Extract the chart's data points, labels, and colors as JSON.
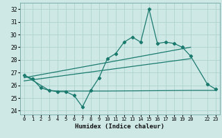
{
  "bg_color": "#cde8e5",
  "grid_color": "#aacfcc",
  "line_color": "#1a7a6e",
  "xlabel": "Humidex (Indice chaleur)",
  "xlim": [
    -0.5,
    23.5
  ],
  "ylim": [
    23.7,
    32.5
  ],
  "yticks": [
    24,
    25,
    26,
    27,
    28,
    29,
    30,
    31,
    32
  ],
  "xticks": [
    0,
    1,
    2,
    3,
    4,
    5,
    6,
    7,
    8,
    9,
    10,
    11,
    12,
    13,
    14,
    15,
    16,
    17,
    18,
    19,
    20,
    22,
    23
  ],
  "xtick_labels": [
    "0",
    "1",
    "2",
    "3",
    "4",
    "5",
    "6",
    "7",
    "8",
    "9",
    "10",
    "11",
    "12",
    "13",
    "14",
    "15",
    "16",
    "17",
    "18",
    "19",
    "20",
    "22",
    "23"
  ],
  "main_line_x": [
    0,
    1,
    2,
    3,
    4,
    5,
    6,
    7,
    8,
    9,
    10,
    11,
    12,
    13,
    14,
    15,
    16,
    17,
    18,
    19,
    20,
    22,
    23
  ],
  "main_line_y": [
    26.8,
    26.5,
    25.8,
    25.6,
    25.5,
    25.5,
    25.2,
    24.3,
    25.6,
    26.6,
    28.1,
    28.5,
    29.4,
    29.8,
    29.4,
    32.0,
    29.3,
    29.4,
    29.3,
    29.0,
    28.3,
    26.1,
    25.7
  ],
  "line2_x": [
    0,
    2,
    3,
    4,
    5,
    6,
    10,
    20,
    22,
    23
  ],
  "line2_y": [
    26.8,
    26.0,
    25.6,
    25.55,
    25.55,
    25.55,
    25.55,
    25.6,
    25.6,
    25.6
  ],
  "trend1_x": [
    0,
    20
  ],
  "trend1_y": [
    26.6,
    29.0
  ],
  "trend2_x": [
    0,
    20
  ],
  "trend2_y": [
    26.35,
    28.1
  ]
}
